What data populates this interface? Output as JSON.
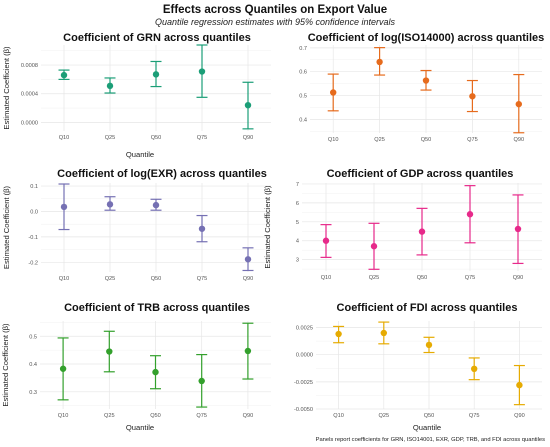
{
  "figure": {
    "title": "Effects across Quantiles on Export Value",
    "subtitle": "Quantile regression estimates with 95% confidence intervals",
    "caption": "Panels report coefficients for GRN, ISO14001, EXR, GDP, TRB, and FDI across quantiles"
  },
  "chart_data": [
    {
      "type": "scatter",
      "title": "Coefficient of GRN across quantiles",
      "xlabel": "Quantile",
      "ylabel": "Estimated Coefficient (β)",
      "color": "#1b9e77",
      "categories": [
        "Q10",
        "Q25",
        "Q50",
        "Q75",
        "Q90"
      ],
      "values": [
        0.00066,
        0.00051,
        0.00067,
        0.00071,
        0.00024
      ],
      "lower": [
        0.0006,
        0.00041,
        0.0005,
        0.00035,
        -9e-05
      ],
      "upper": [
        0.00073,
        0.00062,
        0.00085,
        0.00108,
        0.00056
      ],
      "ylim": [
        -0.00012,
        0.00108
      ],
      "yticks": [
        0.0,
        0.0004,
        0.0008
      ],
      "ytick_labels": [
        "0.0000",
        "0.0004",
        "0.0008"
      ],
      "grid": true
    },
    {
      "type": "scatter",
      "title": "Coefficient of log(ISO14000) across quantiles",
      "xlabel": "",
      "ylabel": "",
      "color": "#e66b1d",
      "categories": [
        "Q10",
        "Q25",
        "Q50",
        "Q75",
        "Q90"
      ],
      "values": [
        0.513,
        0.641,
        0.563,
        0.497,
        0.464
      ],
      "lower": [
        0.436,
        0.586,
        0.523,
        0.433,
        0.344
      ],
      "upper": [
        0.59,
        0.701,
        0.605,
        0.563,
        0.588
      ],
      "ylim": [
        0.343,
        0.712
      ],
      "yticks": [
        0.4,
        0.5,
        0.6,
        0.7
      ],
      "ytick_labels": [
        "0.4",
        "0.5",
        "0.6",
        "0.7"
      ],
      "grid": true
    },
    {
      "type": "scatter",
      "title": "Coefficient of log(EXR) across quantiles",
      "xlabel": "",
      "ylabel": "Estimated Coefficient (β)",
      "color": "#7570b3",
      "categories": [
        "Q10",
        "Q25",
        "Q50",
        "Q75",
        "Q90"
      ],
      "values": [
        0.018,
        0.028,
        0.025,
        -0.068,
        -0.188
      ],
      "lower": [
        -0.071,
        0.005,
        0.005,
        -0.119,
        -0.232
      ],
      "upper": [
        0.108,
        0.058,
        0.048,
        -0.016,
        -0.143
      ],
      "ylim": [
        -0.238,
        0.112
      ],
      "yticks": [
        -0.2,
        -0.1,
        0.0,
        0.1
      ],
      "ytick_labels": [
        "-0.2",
        "-0.1",
        "0.0",
        "0.1"
      ],
      "grid": true
    },
    {
      "type": "scatter",
      "title": "Coefficient of GDP across quantiles",
      "xlabel": "",
      "ylabel": "Estimated Coefficient (β)",
      "color": "#e7298a",
      "categories": [
        "Q10",
        "Q25",
        "Q50",
        "Q75",
        "Q90"
      ],
      "values": [
        4.0,
        3.71,
        4.48,
        5.4,
        4.62
      ],
      "lower": [
        3.12,
        2.49,
        3.25,
        3.89,
        2.8
      ],
      "upper": [
        4.85,
        4.92,
        5.71,
        6.91,
        6.42
      ],
      "ylim": [
        2.4,
        7.05
      ],
      "yticks": [
        3,
        4,
        5,
        6,
        7
      ],
      "ytick_labels": [
        "3",
        "4",
        "5",
        "6",
        "7"
      ],
      "grid": true
    },
    {
      "type": "scatter",
      "title": "Coefficient of TRB across quantiles",
      "xlabel": "Quantile",
      "ylabel": "Estimated Coefficient (β)",
      "color": "#33a02c",
      "categories": [
        "Q10",
        "Q25",
        "Q50",
        "Q75",
        "Q90"
      ],
      "values": [
        0.383,
        0.445,
        0.371,
        0.339,
        0.447
      ],
      "lower": [
        0.271,
        0.372,
        0.311,
        0.245,
        0.346
      ],
      "upper": [
        0.494,
        0.518,
        0.43,
        0.434,
        0.547
      ],
      "ylim": [
        0.238,
        0.555
      ],
      "yticks": [
        0.3,
        0.4,
        0.5
      ],
      "ytick_labels": [
        "0.3",
        "0.4",
        "0.5"
      ],
      "grid": true
    },
    {
      "type": "scatter",
      "title": "Coefficient of FDI across quantiles",
      "xlabel": "Quantile",
      "ylabel": "",
      "color": "#e6ab02",
      "categories": [
        "Q10",
        "Q25",
        "Q50",
        "Q75",
        "Q90"
      ],
      "values": [
        0.0019,
        0.002,
        0.0009,
        -0.0013,
        -0.0028
      ],
      "lower": [
        0.0011,
        0.001,
        0.0002,
        -0.0023,
        -0.0046
      ],
      "upper": [
        0.0026,
        0.003,
        0.0016,
        -0.0003,
        -0.001
      ],
      "ylim": [
        -0.005,
        0.0031
      ],
      "yticks": [
        -0.005,
        -0.0025,
        0.0,
        0.0025
      ],
      "ytick_labels": [
        "-0.0050",
        "-0.0025",
        "0.0000",
        "0.0025"
      ],
      "grid": true
    }
  ]
}
